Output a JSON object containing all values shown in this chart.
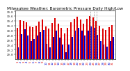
{
  "title": "Milwaukee Weather: Barometric Pressure Daily High/Low",
  "ylim": [
    28.8,
    30.85
  ],
  "yticks": [
    29.0,
    29.2,
    29.4,
    29.6,
    29.8,
    30.0,
    30.2,
    30.4,
    30.6,
    30.8
  ],
  "background_color": "#ffffff",
  "highs": [
    30.12,
    30.42,
    30.4,
    30.35,
    30.18,
    30.15,
    30.2,
    30.38,
    30.45,
    30.18,
    30.08,
    30.32,
    30.52,
    30.28,
    30.1,
    29.88,
    30.12,
    30.35,
    30.5,
    30.58,
    30.45,
    30.28,
    30.5,
    30.6,
    30.55,
    30.4,
    30.2,
    30.08,
    30.02,
    30.15,
    30.22
  ],
  "lows": [
    29.3,
    29.85,
    30.05,
    29.78,
    29.55,
    29.65,
    29.78,
    29.92,
    30.02,
    29.45,
    29.3,
    29.72,
    29.98,
    29.7,
    29.42,
    29.1,
    29.42,
    29.72,
    29.98,
    30.1,
    29.98,
    29.78,
    29.98,
    30.18,
    30.1,
    29.82,
    29.55,
    29.42,
    29.32,
    29.55,
    29.72
  ],
  "high_color": "#dd0000",
  "low_color": "#0000cc",
  "baseline": 28.8,
  "dashed_indices": [
    23,
    24,
    25
  ],
  "title_fontsize": 4.2,
  "tick_fontsize": 2.8,
  "ytick_fontsize": 2.8,
  "title_color": "#000000",
  "grid_color": "#cccccc",
  "n_days": 31
}
